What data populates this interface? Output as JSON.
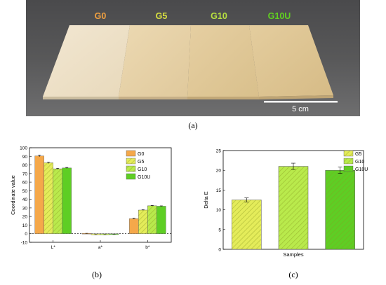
{
  "panel_a": {
    "labels": [
      {
        "text": "G0",
        "color": "#f0a040"
      },
      {
        "text": "G5",
        "color": "#d8e040"
      },
      {
        "text": "G10",
        "color": "#b8e040"
      },
      {
        "text": "G10U",
        "color": "#60d020"
      }
    ],
    "scale_label": "5 cm",
    "caption": "(a)"
  },
  "panel_b": {
    "caption": "(b)"
  },
  "panel_c": {
    "caption": "(c)"
  },
  "chart_data": [
    {
      "type": "bar",
      "ylabel": "Coordinate value",
      "ylim": [
        -10,
        100
      ],
      "yticks": [
        -10,
        0,
        10,
        20,
        30,
        40,
        50,
        60,
        70,
        80,
        90,
        100
      ],
      "categories": [
        "L*",
        "a*",
        "b*"
      ],
      "series": [
        {
          "name": "G0",
          "color": "#f5a84a",
          "pattern": "none",
          "values": [
            90.5,
            0.3,
            17.5
          ],
          "errors": [
            1.0,
            0.2,
            0.5
          ]
        },
        {
          "name": "G5",
          "color": "#e4ec5a",
          "pattern": "hatch",
          "values": [
            82.5,
            -1.2,
            27.5
          ],
          "errors": [
            0.8,
            0.2,
            0.4
          ]
        },
        {
          "name": "G10",
          "color": "#b9ea4c",
          "pattern": "hatch",
          "values": [
            75.5,
            -1.2,
            32.5
          ],
          "errors": [
            0.6,
            0.2,
            0.4
          ]
        },
        {
          "name": "G10U",
          "color": "#5ece24",
          "pattern": "none",
          "values": [
            76.5,
            -1.0,
            32.0
          ],
          "errors": [
            0.6,
            0.2,
            0.4
          ]
        }
      ],
      "legend": "top-right",
      "grid": false
    },
    {
      "type": "bar",
      "ylabel": "Delta E",
      "xlabel": "Samples",
      "ylim": [
        0,
        25
      ],
      "yticks": [
        0,
        5,
        10,
        15,
        20,
        25
      ],
      "series": [
        {
          "name": "G5",
          "color": "#e4ec5a",
          "pattern": "hatch",
          "value": 12.5,
          "error": 0.5
        },
        {
          "name": "G10",
          "color": "#b9ea4c",
          "pattern": "hatch",
          "value": 21.0,
          "error": 0.8
        },
        {
          "name": "G10U",
          "color": "#5ece24",
          "pattern": "hatch",
          "value": 20.0,
          "error": 0.8
        }
      ],
      "legend": "top-right",
      "grid": false
    }
  ]
}
